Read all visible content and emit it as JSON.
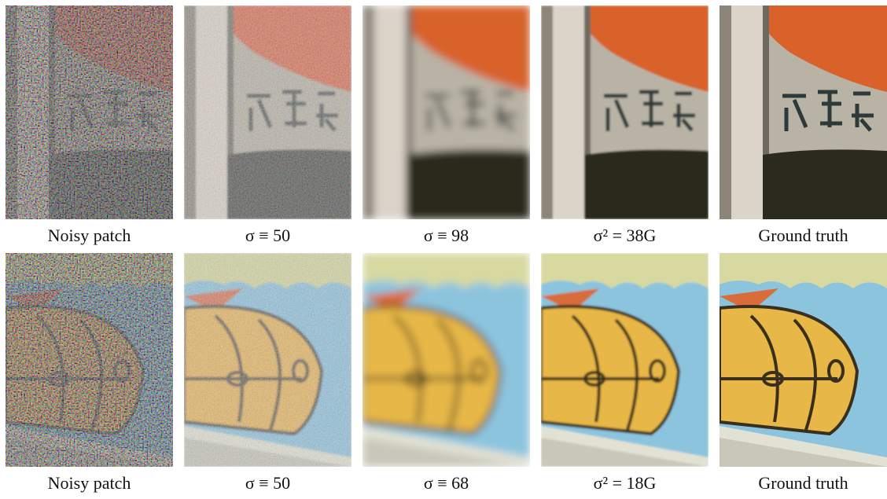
{
  "rows": [
    {
      "captions": [
        "Noisy patch",
        "σ ≡ 50",
        "σ ≡ 98",
        "σ² = 38G",
        "Ground truth"
      ]
    },
    {
      "captions": [
        "Noisy patch",
        "σ ≡ 50",
        "σ ≡ 68",
        "σ² = 18G",
        "Ground truth"
      ]
    }
  ]
}
